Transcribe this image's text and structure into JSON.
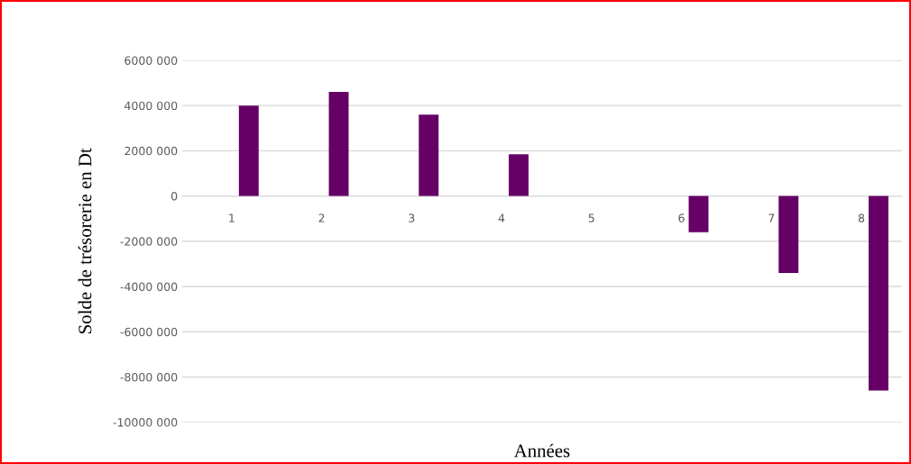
{
  "chart_data": {
    "type": "bar",
    "xlabel": "Années",
    "ylabel": "Solde de trésorerie en Dt",
    "categories": [
      "1",
      "2",
      "3",
      "4",
      "5",
      "6",
      "7",
      "8"
    ],
    "values": [
      4000000,
      4600000,
      3600000,
      1850000,
      0,
      -1600000,
      -3400000,
      -8600000
    ],
    "color": "#660066",
    "ylim": [
      -10000000,
      6000000
    ],
    "yticks": [
      {
        "value": -10000000,
        "label": "-10000 000"
      },
      {
        "value": -8000000,
        "label": "-8000 000"
      },
      {
        "value": -6000000,
        "label": "-6000 000"
      },
      {
        "value": -4000000,
        "label": "-4000 000"
      },
      {
        "value": -2000000,
        "label": "-2000 000"
      },
      0,
      {
        "value": 2000000,
        "label": "2000 000"
      },
      {
        "value": 4000000,
        "label": "4000 000"
      },
      {
        "value": 6000000,
        "label": "6000 000"
      }
    ],
    "grid": "y",
    "legend": false
  }
}
